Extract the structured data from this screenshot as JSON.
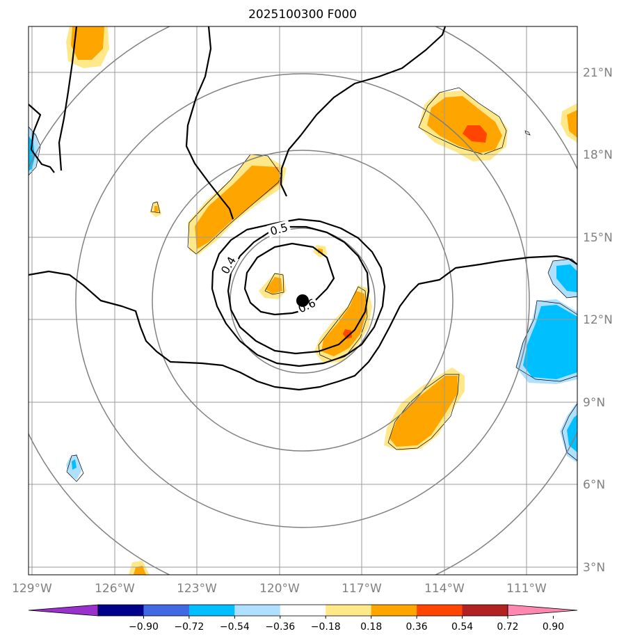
{
  "title": "2025100300 F000",
  "x_axis": {
    "ticks": [
      "129°W",
      "126°W",
      "123°W",
      "120°W",
      "117°W",
      "114°W",
      "111°W"
    ]
  },
  "y_axis": {
    "ticks": [
      "3°N",
      "6°N",
      "9°N",
      "12°N",
      "15°N",
      "18°N",
      "21°N"
    ]
  },
  "colorbar": {
    "ticks": [
      "−0.90",
      "−0.72",
      "−0.54",
      "−0.36",
      "−0.18",
      "0.18",
      "0.36",
      "0.54",
      "0.72",
      "0.90"
    ],
    "colors": [
      "#9932cc",
      "#00008b",
      "#4169e1",
      "#00bfff",
      "#b0e0ff",
      "#ffffff",
      "#ffe88a",
      "#ffa500",
      "#ff4500",
      "#b22222",
      "#ff88b0"
    ]
  },
  "contours": {
    "labels": [
      "0.4",
      "0.5",
      "0.6"
    ]
  },
  "colors": {
    "light_orange": "#ffe88a",
    "orange": "#ffa500",
    "red": "#ff4500",
    "light_blue": "#b0e0ff",
    "blue": "#00bfff",
    "grid": "#808080"
  },
  "chart_data": {
    "type": "heatmap",
    "title": "2025100300 F000",
    "x_range_deg": [
      -129,
      -109
    ],
    "y_range_deg": [
      2.7,
      22.7
    ],
    "storm_center": {
      "lon": -119.2,
      "lat": 12.7
    },
    "contour_levels": [
      0.4,
      0.5,
      0.6
    ],
    "colorbar_levels": [
      -0.9,
      -0.72,
      -0.54,
      -0.36,
      -0.18,
      0.18,
      0.36,
      0.54,
      0.72,
      0.9
    ]
  }
}
